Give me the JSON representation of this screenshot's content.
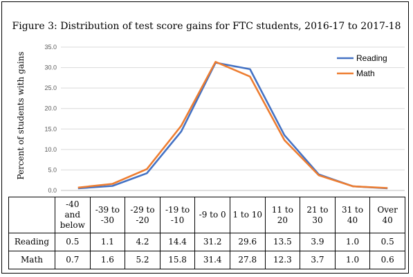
{
  "chart_data": {
    "type": "line",
    "title": "Figure 3: Distribution of test score gains for FTC students, 2016-17 to 2017-18",
    "ylabel": "Percent of students with gains",
    "ylim": [
      0,
      35
    ],
    "yticks": [
      "0.0",
      "5.0",
      "10.0",
      "15.0",
      "20.0",
      "25.0",
      "30.0",
      "35.0"
    ],
    "grid": true,
    "legend_position": "top-right",
    "categories": [
      "-40 and below",
      "-39 to -30",
      "-29 to -20",
      "-19 to -10",
      "-9 to 0",
      "1 to 10",
      "11 to 20",
      "21 to 30",
      "31 to 40",
      "Over 40"
    ],
    "series": [
      {
        "name": "Reading",
        "color": "#4472C4",
        "values": [
          0.5,
          1.1,
          4.2,
          14.4,
          31.2,
          29.6,
          13.5,
          3.9,
          1.0,
          0.5
        ]
      },
      {
        "name": "Math",
        "color": "#ED7D31",
        "values": [
          0.7,
          1.6,
          5.2,
          15.8,
          31.4,
          27.8,
          12.3,
          3.7,
          1.0,
          0.6
        ]
      }
    ]
  },
  "table": {
    "headers": [
      "-40 and below",
      "-39 to -30",
      "-29 to -20",
      "-19 to -10",
      "-9 to 0",
      "1 to 10",
      "11 to 20",
      "21 to 30",
      "31 to 40",
      "Over 40"
    ],
    "rows": [
      {
        "label": "Reading",
        "cells": [
          "0.5",
          "1.1",
          "4.2",
          "14.4",
          "31.2",
          "29.6",
          "13.5",
          "3.9",
          "1.0",
          "0.5"
        ]
      },
      {
        "label": "Math",
        "cells": [
          "0.7",
          "1.6",
          "5.2",
          "15.8",
          "31.4",
          "27.8",
          "12.3",
          "3.7",
          "1.0",
          "0.6"
        ]
      }
    ]
  }
}
